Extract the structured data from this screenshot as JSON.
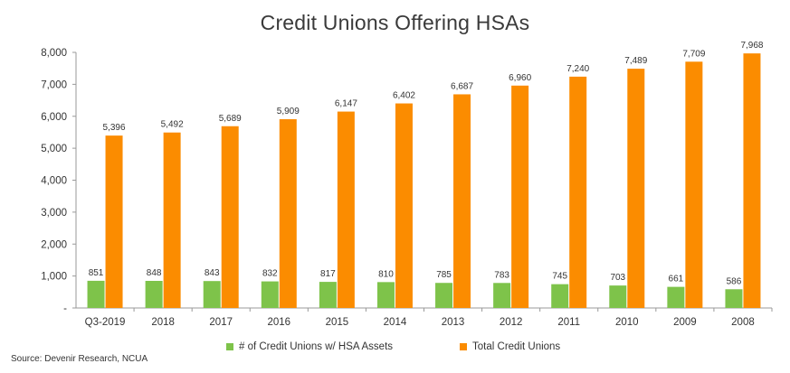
{
  "chart_data": {
    "type": "bar",
    "title": "Credit Unions Offering HSAs",
    "categories": [
      "Q3-2019",
      "2018",
      "2017",
      "2016",
      "2015",
      "2014",
      "2013",
      "2012",
      "2011",
      "2010",
      "2009",
      "2008"
    ],
    "series": [
      {
        "name": "# of Credit Unions w/ HSA Assets",
        "color": "#7ec34a",
        "values": [
          851,
          848,
          843,
          832,
          817,
          810,
          785,
          783,
          745,
          703,
          661,
          586
        ],
        "labels": [
          "851",
          "848",
          "843",
          "832",
          "817",
          "810",
          "785",
          "783",
          "745",
          "703",
          "661",
          "586"
        ]
      },
      {
        "name": "Total Credit Unions",
        "color": "#fb8c00",
        "values": [
          5396,
          5492,
          5689,
          5909,
          6147,
          6402,
          6687,
          6960,
          7240,
          7489,
          7709,
          7968
        ],
        "labels": [
          "5,396",
          "5,492",
          "5,689",
          "5,909",
          "6,147",
          "6,402",
          "6,687",
          "6,960",
          "7,240",
          "7,489",
          "7,709",
          "7,968"
        ]
      }
    ],
    "ylim": [
      0,
      8000
    ],
    "yticks": [
      0,
      1000,
      2000,
      3000,
      4000,
      5000,
      6000,
      7000,
      8000
    ],
    "ytick_labels": [
      "-",
      "1,000",
      "2,000",
      "3,000",
      "4,000",
      "5,000",
      "6,000",
      "7,000",
      "8,000"
    ],
    "xlabel": "",
    "ylabel": "",
    "grid": false,
    "legend_position": "bottom"
  },
  "source_note": "Source: Devenir Research, NCUA"
}
